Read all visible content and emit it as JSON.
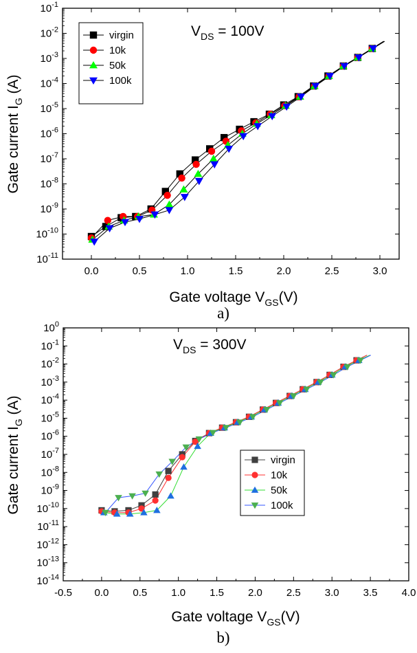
{
  "chart_data": [
    {
      "type": "scatter",
      "annotation_main": "V",
      "annotation_sub": "DS",
      "annotation_rest": " = 100V",
      "ylabel_main": "Gate current I",
      "ylabel_sub": "G",
      "ylabel_rest": " (A)",
      "xlabel_main": "Gate voltage V",
      "xlabel_sub": "GS",
      "xlabel_rest": "(V)",
      "caption": "a)",
      "xlim": [
        -0.3,
        3.2
      ],
      "ylim_exp": [
        -11,
        -1
      ],
      "y_scale": "log",
      "x_ticks": [
        "0.0",
        "0.5",
        "1.0",
        "1.5",
        "2.0",
        "2.5",
        "3.0"
      ],
      "y_ticks": [
        {
          "base": "10",
          "exp": "-1"
        },
        {
          "base": "10",
          "exp": "-2"
        },
        {
          "base": "10",
          "exp": "-3"
        },
        {
          "base": "10",
          "exp": "-4"
        },
        {
          "base": "10",
          "exp": "-5"
        },
        {
          "base": "10",
          "exp": "-6"
        },
        {
          "base": "10",
          "exp": "-7"
        },
        {
          "base": "10",
          "exp": "-8"
        },
        {
          "base": "10",
          "exp": "-9"
        },
        {
          "base": "10",
          "exp": "-10"
        },
        {
          "base": "10",
          "exp": "-11"
        }
      ],
      "legend_position": "top-left",
      "series": [
        {
          "name": "virgin",
          "marker": "square",
          "color": "#000000",
          "line": "#000000",
          "x": [
            0.0,
            0.15,
            0.31,
            0.46,
            0.62,
            0.77,
            0.92,
            1.08,
            1.23,
            1.38,
            1.54,
            1.69,
            1.85,
            2.0,
            2.15,
            2.31,
            2.46,
            2.62,
            2.77,
            2.92
          ],
          "y": [
            8e-11,
            2e-10,
            4.5e-10,
            5e-10,
            1e-09,
            5e-09,
            2.5e-08,
            9e-08,
            2.5e-07,
            7e-07,
            1.5e-06,
            3e-06,
            6e-06,
            1.4e-05,
            3e-05,
            8e-05,
            0.0002,
            0.0005,
            0.0011,
            0.0025
          ]
        },
        {
          "name": "10k",
          "marker": "circle",
          "color": "#ff0000",
          "line": "#000000",
          "x": [
            0.0,
            0.17,
            0.33,
            0.48,
            0.63,
            0.79,
            0.94,
            1.09,
            1.25,
            1.4,
            1.56,
            1.71,
            1.86,
            2.01,
            2.16,
            2.32,
            2.47,
            2.62,
            2.77,
            2.92
          ],
          "y": [
            7e-11,
            3.5e-10,
            5e-10,
            5e-10,
            9e-10,
            3.5e-09,
            1.7e-08,
            6e-08,
            2e-07,
            5e-07,
            1.3e-06,
            2.7e-06,
            6e-06,
            1.3e-05,
            3e-05,
            8e-05,
            0.0002,
            0.0005,
            0.0011,
            0.0025
          ]
        },
        {
          "name": "50k",
          "marker": "triangle-up",
          "color": "#00ff00",
          "line": "#000000",
          "x": [
            0.01,
            0.18,
            0.34,
            0.49,
            0.65,
            0.81,
            0.96,
            1.11,
            1.27,
            1.42,
            1.57,
            1.72,
            1.87,
            2.02,
            2.17,
            2.32,
            2.47,
            2.62,
            2.77,
            2.92
          ],
          "y": [
            6e-11,
            2e-10,
            3.5e-10,
            5e-10,
            6e-10,
            1.5e-09,
            6e-09,
            2.5e-08,
            1e-07,
            3.5e-07,
            1e-06,
            2.5e-06,
            5.5e-06,
            1.3e-05,
            3e-05,
            8e-05,
            0.0002,
            0.0005,
            0.0011,
            0.0025
          ]
        },
        {
          "name": "100k",
          "marker": "triangle-down",
          "color": "#0000ff",
          "line": "#000000",
          "x": [
            0.03,
            0.19,
            0.35,
            0.5,
            0.66,
            0.81,
            0.97,
            1.12,
            1.28,
            1.43,
            1.58,
            1.73,
            1.88,
            2.03,
            2.18,
            2.33,
            2.48,
            2.63,
            2.78,
            2.93
          ],
          "y": [
            5e-11,
            1.7e-10,
            3e-10,
            4e-10,
            6e-10,
            9e-10,
            3e-09,
            1.3e-08,
            6e-08,
            2.5e-07,
            8e-07,
            2e-06,
            5e-06,
            1.2e-05,
            3e-05,
            8e-05,
            0.0002,
            0.0005,
            0.0011,
            0.0025
          ]
        }
      ]
    },
    {
      "type": "line",
      "annotation_main": "V",
      "annotation_sub": "DS",
      "annotation_rest": " = 300V",
      "ylabel_main": "Gate current I",
      "ylabel_sub": "G",
      "ylabel_rest": " (A)",
      "xlabel_main": "Gate voltage V",
      "xlabel_sub": "GS",
      "xlabel_rest": "(V)",
      "caption": "b)",
      "xlim": [
        -0.5,
        4.0
      ],
      "ylim_exp": [
        -14,
        0
      ],
      "y_scale": "log",
      "x_ticks": [
        "-0.5",
        "0.0",
        "0.5",
        "1.0",
        "1.5",
        "2.0",
        "2.5",
        "3.0",
        "3.5",
        "4.0"
      ],
      "y_ticks": [
        {
          "base": "10",
          "exp": "0"
        },
        {
          "base": "10",
          "exp": "-1"
        },
        {
          "base": "10",
          "exp": "-2"
        },
        {
          "base": "10",
          "exp": "-3"
        },
        {
          "base": "10",
          "exp": "-4"
        },
        {
          "base": "10",
          "exp": "-5"
        },
        {
          "base": "10",
          "exp": "-6"
        },
        {
          "base": "10",
          "exp": "-7"
        },
        {
          "base": "10",
          "exp": "-8"
        },
        {
          "base": "10",
          "exp": "-9"
        },
        {
          "base": "10",
          "exp": "-10"
        },
        {
          "base": "10",
          "exp": "-11"
        },
        {
          "base": "10",
          "exp": "-12"
        },
        {
          "base": "10",
          "exp": "-13"
        },
        {
          "base": "10",
          "exp": "-14"
        }
      ],
      "legend_position": "center-right",
      "series": [
        {
          "name": "virgin",
          "marker": "square",
          "color": "#404040",
          "line": "#404040",
          "x": [
            0.0,
            0.17,
            0.35,
            0.52,
            0.7,
            0.87,
            1.05,
            1.22,
            1.4,
            1.57,
            1.75,
            1.92,
            2.1,
            2.27,
            2.45,
            2.62,
            2.8,
            2.97,
            3.15,
            3.32
          ],
          "y": [
            8e-11,
            7e-11,
            8e-11,
            1.5e-10,
            6e-10,
            1.2e-08,
            1e-07,
            5.5e-07,
            1.5e-06,
            3e-06,
            6e-06,
            1.2e-05,
            3e-05,
            7e-05,
            0.00017,
            0.0004,
            0.001,
            0.0025,
            0.007,
            0.016
          ]
        },
        {
          "name": "10k",
          "marker": "circle",
          "color": "#ff3030",
          "line": "#ff3030",
          "x": [
            0.0,
            0.17,
            0.35,
            0.52,
            0.7,
            0.87,
            1.05,
            1.22,
            1.4,
            1.57,
            1.75,
            1.92,
            2.1,
            2.27,
            2.45,
            2.62,
            2.8,
            2.97,
            3.15,
            3.32
          ],
          "y": [
            7e-11,
            6e-11,
            6e-11,
            1e-10,
            2.8e-10,
            5e-09,
            7e-08,
            5e-07,
            1.5e-06,
            3e-06,
            6e-06,
            1.2e-05,
            3e-05,
            7e-05,
            0.00017,
            0.0004,
            0.001,
            0.0025,
            0.007,
            0.016
          ]
        },
        {
          "name": "50k",
          "marker": "triangle-up",
          "color": "#1e6fe0",
          "line": "#33dd33",
          "x": [
            0.03,
            0.2,
            0.37,
            0.55,
            0.72,
            0.9,
            1.07,
            1.25,
            1.42,
            1.6,
            1.77,
            1.95,
            2.12,
            2.3,
            2.47,
            2.65,
            2.82,
            3.0,
            3.17,
            3.35
          ],
          "y": [
            6e-11,
            5e-11,
            5e-11,
            6e-11,
            8e-11,
            5e-10,
            2e-08,
            2.8e-07,
            1.5e-06,
            3e-06,
            6e-06,
            1.2e-05,
            3e-05,
            7e-05,
            0.00017,
            0.0004,
            0.001,
            0.0025,
            0.007,
            0.016
          ]
        },
        {
          "name": "100k",
          "marker": "triangle-down",
          "color": "#4caf50",
          "line": "#3355ff",
          "x": [
            0.05,
            0.22,
            0.4,
            0.57,
            0.75,
            0.92,
            1.1,
            1.27,
            1.45,
            1.62,
            1.8,
            1.97,
            2.15,
            2.32,
            2.5,
            2.67,
            2.85,
            3.02,
            3.2,
            3.37
          ],
          "y": [
            6e-11,
            4e-10,
            5e-10,
            7e-10,
            8e-09,
            4e-08,
            2.5e-07,
            7e-07,
            1.6e-06,
            3e-06,
            6e-06,
            1.2e-05,
            3e-05,
            7e-05,
            0.00017,
            0.0004,
            0.001,
            0.0025,
            0.007,
            0.016
          ]
        }
      ]
    }
  ]
}
